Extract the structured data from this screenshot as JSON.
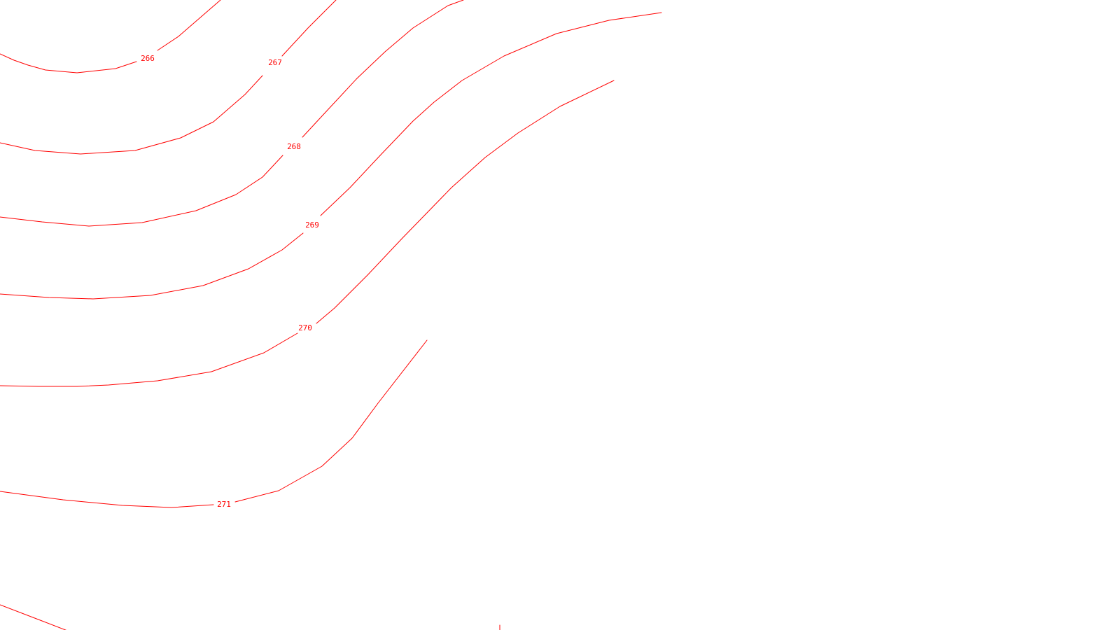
{
  "map": {
    "line_color": "#ff0000",
    "background": "#ffffff",
    "contours": [
      {
        "id": "266",
        "label": "266"
      },
      {
        "id": "267",
        "label": "267"
      },
      {
        "id": "268",
        "label": "268"
      },
      {
        "id": "269",
        "label": "269"
      },
      {
        "id": "270",
        "label": "270"
      },
      {
        "id": "271",
        "label": "271"
      }
    ]
  }
}
